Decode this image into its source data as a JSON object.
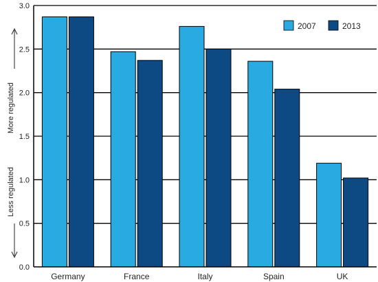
{
  "chart_data": {
    "type": "bar",
    "categories": [
      "Germany",
      "France",
      "Italy",
      "Spain",
      "UK"
    ],
    "series": [
      {
        "name": "2007",
        "values": [
          2.87,
          2.47,
          2.76,
          2.36,
          1.19
        ],
        "color": "#29abe2"
      },
      {
        "name": "2013",
        "values": [
          2.87,
          2.37,
          2.5,
          2.04,
          1.02
        ],
        "color": "#0d4a84"
      }
    ],
    "ylim": [
      0.0,
      3.0
    ],
    "yticks": [
      "0.0",
      "0.5",
      "1.0",
      "1.5",
      "2.0",
      "2.5",
      "3.0"
    ],
    "grid": true,
    "legend_position": "top-right",
    "side_labels": {
      "upper": "More regulated",
      "lower": "Less regulated"
    }
  }
}
